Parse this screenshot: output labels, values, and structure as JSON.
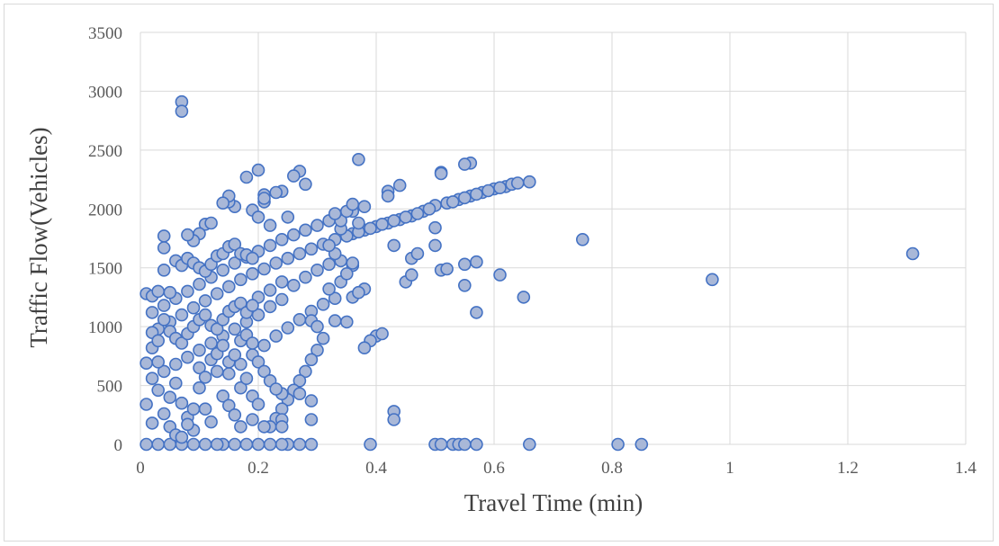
{
  "chart_data": {
    "type": "scatter",
    "title": "",
    "xlabel": "Travel Time (min)",
    "ylabel": "Traffic Flow(Vehicles)",
    "xlim": [
      0,
      1.4
    ],
    "ylim": [
      0,
      3500
    ],
    "xticks": [
      0,
      0.2,
      0.4,
      0.6,
      0.8,
      1,
      1.2,
      1.4
    ],
    "yticks": [
      0,
      500,
      1000,
      1500,
      2000,
      2500,
      3000,
      3500
    ],
    "xtick_labels": [
      "0",
      "0.2",
      "0.4",
      "0.6",
      "0.8",
      "1",
      "1.2",
      "1.4"
    ],
    "ytick_labels": [
      "0",
      "500",
      "1000",
      "1500",
      "2000",
      "2500",
      "3000",
      "3500"
    ],
    "grid": true,
    "legend": "none",
    "marker_fill": "#a9b8d8",
    "marker_edge": "#4472c4",
    "gridline_color": "#d9d9d9",
    "series": [
      {
        "points": [
          [
            0.07,
            2910
          ],
          [
            0.07,
            2830
          ],
          [
            0.37,
            2420
          ],
          [
            0.56,
            2390
          ],
          [
            0.55,
            2380
          ],
          [
            0.27,
            2320
          ],
          [
            0.26,
            2280
          ],
          [
            0.2,
            2330
          ],
          [
            0.18,
            2270
          ],
          [
            0.51,
            2310
          ],
          [
            0.51,
            2300
          ],
          [
            0.28,
            2210
          ],
          [
            0.44,
            2200
          ],
          [
            0.24,
            2150
          ],
          [
            0.21,
            2120
          ],
          [
            0.42,
            2150
          ],
          [
            0.42,
            2110
          ],
          [
            0.5,
            2030
          ],
          [
            0.52,
            2050
          ],
          [
            0.54,
            2080
          ],
          [
            0.56,
            2110
          ],
          [
            0.58,
            2140
          ],
          [
            0.6,
            2170
          ],
          [
            0.62,
            2190
          ],
          [
            0.63,
            2210
          ],
          [
            0.64,
            2220
          ],
          [
            0.66,
            2230
          ],
          [
            0.53,
            2060
          ],
          [
            0.55,
            2095
          ],
          [
            0.57,
            2125
          ],
          [
            0.59,
            2155
          ],
          [
            0.61,
            2180
          ],
          [
            0.36,
            1790
          ],
          [
            0.38,
            1820
          ],
          [
            0.4,
            1850
          ],
          [
            0.42,
            1880
          ],
          [
            0.44,
            1910
          ],
          [
            0.46,
            1940
          ],
          [
            0.48,
            1980
          ],
          [
            0.49,
            2000
          ],
          [
            0.47,
            1960
          ],
          [
            0.45,
            1930
          ],
          [
            0.43,
            1900
          ],
          [
            0.41,
            1870
          ],
          [
            0.39,
            1835
          ],
          [
            0.37,
            1805
          ],
          [
            0.35,
            1770
          ],
          [
            0.33,
            1740
          ],
          [
            0.31,
            1700
          ],
          [
            0.29,
            1660
          ],
          [
            0.27,
            1620
          ],
          [
            0.25,
            1580
          ],
          [
            0.23,
            1540
          ],
          [
            0.21,
            1490
          ],
          [
            0.19,
            1450
          ],
          [
            0.17,
            1400
          ],
          [
            0.15,
            1340
          ],
          [
            0.13,
            1280
          ],
          [
            0.11,
            1220
          ],
          [
            0.09,
            1160
          ],
          [
            0.07,
            1100
          ],
          [
            0.05,
            1040
          ],
          [
            0.03,
            980
          ],
          [
            0.3,
            1860
          ],
          [
            0.32,
            1900
          ],
          [
            0.34,
            1940
          ],
          [
            0.36,
            1980
          ],
          [
            0.38,
            2020
          ],
          [
            0.28,
            1820
          ],
          [
            0.26,
            1780
          ],
          [
            0.24,
            1740
          ],
          [
            0.22,
            1690
          ],
          [
            0.2,
            1640
          ],
          [
            0.18,
            1590
          ],
          [
            0.16,
            1540
          ],
          [
            0.14,
            1480
          ],
          [
            0.12,
            1420
          ],
          [
            0.1,
            1360
          ],
          [
            0.08,
            1300
          ],
          [
            0.06,
            1240
          ],
          [
            0.04,
            1180
          ],
          [
            0.02,
            1120
          ],
          [
            0.26,
            1350
          ],
          [
            0.28,
            1420
          ],
          [
            0.3,
            1480
          ],
          [
            0.32,
            1530
          ],
          [
            0.34,
            1560
          ],
          [
            0.36,
            1520
          ],
          [
            0.38,
            1320
          ],
          [
            0.33,
            1240
          ],
          [
            0.31,
            1190
          ],
          [
            0.29,
            1130
          ],
          [
            0.27,
            1060
          ],
          [
            0.25,
            990
          ],
          [
            0.23,
            920
          ],
          [
            0.21,
            840
          ],
          [
            0.19,
            760
          ],
          [
            0.17,
            680
          ],
          [
            0.15,
            600
          ],
          [
            0.29,
            1050
          ],
          [
            0.3,
            1000
          ],
          [
            0.31,
            900
          ],
          [
            0.3,
            800
          ],
          [
            0.29,
            720
          ],
          [
            0.28,
            620
          ],
          [
            0.27,
            540
          ],
          [
            0.26,
            460
          ],
          [
            0.25,
            380
          ],
          [
            0.24,
            300
          ],
          [
            0.23,
            220
          ],
          [
            0.22,
            150
          ],
          [
            0.2,
            1250
          ],
          [
            0.22,
            1310
          ],
          [
            0.24,
            1380
          ],
          [
            0.2,
            1100
          ],
          [
            0.22,
            1170
          ],
          [
            0.24,
            1230
          ],
          [
            0.18,
            1040
          ],
          [
            0.16,
            980
          ],
          [
            0.14,
            920
          ],
          [
            0.12,
            860
          ],
          [
            0.1,
            800
          ],
          [
            0.08,
            740
          ],
          [
            0.06,
            680
          ],
          [
            0.04,
            620
          ],
          [
            0.02,
            560
          ],
          [
            0.45,
            1380
          ],
          [
            0.46,
            1440
          ],
          [
            0.46,
            1580
          ],
          [
            0.47,
            1620
          ],
          [
            0.43,
            1690
          ],
          [
            0.5,
            1690
          ],
          [
            0.51,
            1480
          ],
          [
            0.52,
            1490
          ],
          [
            0.55,
            1350
          ],
          [
            0.55,
            1530
          ],
          [
            0.57,
            1550
          ],
          [
            0.61,
            1440
          ],
          [
            0.57,
            1120
          ],
          [
            0.65,
            1250
          ],
          [
            0.75,
            1740
          ],
          [
            0.97,
            1400
          ],
          [
            1.31,
            1620
          ],
          [
            0.5,
            1840
          ],
          [
            0.4,
            920
          ],
          [
            0.41,
            940
          ],
          [
            0.39,
            880
          ],
          [
            0.38,
            820
          ],
          [
            0.43,
            280
          ],
          [
            0.43,
            210
          ],
          [
            0.39,
            0
          ],
          [
            0.5,
            0
          ],
          [
            0.51,
            0
          ],
          [
            0.53,
            0
          ],
          [
            0.54,
            0
          ],
          [
            0.55,
            0
          ],
          [
            0.57,
            0
          ],
          [
            0.66,
            0
          ],
          [
            0.81,
            0
          ],
          [
            0.85,
            0
          ],
          [
            0.29,
            0
          ],
          [
            0.27,
            0
          ],
          [
            0.25,
            0
          ],
          [
            0.24,
            0
          ],
          [
            0.22,
            0
          ],
          [
            0.2,
            0
          ],
          [
            0.18,
            0
          ],
          [
            0.16,
            0
          ],
          [
            0.14,
            0
          ],
          [
            0.13,
            0
          ],
          [
            0.11,
            0
          ],
          [
            0.09,
            0
          ],
          [
            0.07,
            0
          ],
          [
            0.05,
            0
          ],
          [
            0.03,
            0
          ],
          [
            0.01,
            0
          ],
          [
            0.29,
            370
          ],
          [
            0.29,
            210
          ],
          [
            0.27,
            430
          ],
          [
            0.24,
            430
          ],
          [
            0.24,
            210
          ],
          [
            0.24,
            150
          ],
          [
            0.21,
            150
          ],
          [
            0.19,
            210
          ],
          [
            0.17,
            150
          ],
          [
            0.11,
            1870
          ],
          [
            0.12,
            1880
          ],
          [
            0.1,
            1790
          ],
          [
            0.09,
            1730
          ],
          [
            0.08,
            1780
          ],
          [
            0.04,
            1770
          ],
          [
            0.04,
            1670
          ],
          [
            0.16,
            2020
          ],
          [
            0.15,
            2060
          ],
          [
            0.15,
            2110
          ],
          [
            0.14,
            2050
          ],
          [
            0.19,
            1990
          ],
          [
            0.2,
            1930
          ],
          [
            0.22,
            1860
          ],
          [
            0.21,
            2060
          ],
          [
            0.23,
            2140
          ],
          [
            0.21,
            2090
          ],
          [
            0.25,
            1930
          ],
          [
            0.02,
            820
          ],
          [
            0.03,
            700
          ],
          [
            0.01,
            690
          ],
          [
            0.03,
            460
          ],
          [
            0.01,
            340
          ],
          [
            0.02,
            180
          ],
          [
            0.04,
            260
          ],
          [
            0.05,
            400
          ],
          [
            0.06,
            520
          ],
          [
            0.07,
            350
          ],
          [
            0.08,
            230
          ],
          [
            0.09,
            120
          ],
          [
            0.1,
            480
          ],
          [
            0.11,
            300
          ],
          [
            0.12,
            190
          ],
          [
            0.13,
            620
          ],
          [
            0.14,
            410
          ],
          [
            0.15,
            330
          ],
          [
            0.16,
            250
          ],
          [
            0.17,
            480
          ],
          [
            0.18,
            560
          ],
          [
            0.19,
            410
          ],
          [
            0.2,
            340
          ],
          [
            0.01,
            1280
          ],
          [
            0.02,
            1260
          ],
          [
            0.03,
            1300
          ],
          [
            0.04,
            1480
          ],
          [
            0.05,
            1290
          ],
          [
            0.06,
            1560
          ],
          [
            0.07,
            1520
          ],
          [
            0.08,
            1580
          ],
          [
            0.09,
            1540
          ],
          [
            0.1,
            1500
          ],
          [
            0.11,
            1470
          ],
          [
            0.12,
            1530
          ],
          [
            0.13,
            1600
          ],
          [
            0.14,
            1620
          ],
          [
            0.15,
            1680
          ],
          [
            0.16,
            1700
          ],
          [
            0.17,
            1620
          ],
          [
            0.18,
            1610
          ],
          [
            0.19,
            1580
          ],
          [
            0.02,
            950
          ],
          [
            0.03,
            880
          ],
          [
            0.04,
            1060
          ],
          [
            0.05,
            960
          ],
          [
            0.06,
            900
          ],
          [
            0.07,
            860
          ],
          [
            0.08,
            940
          ],
          [
            0.09,
            1000
          ],
          [
            0.1,
            1060
          ],
          [
            0.11,
            1100
          ],
          [
            0.12,
            1010
          ],
          [
            0.13,
            980
          ],
          [
            0.14,
            1060
          ],
          [
            0.15,
            1130
          ],
          [
            0.16,
            1170
          ],
          [
            0.17,
            1200
          ],
          [
            0.18,
            1120
          ],
          [
            0.19,
            1180
          ],
          [
            0.05,
            150
          ],
          [
            0.06,
            80
          ],
          [
            0.07,
            60
          ],
          [
            0.08,
            170
          ],
          [
            0.09,
            300
          ],
          [
            0.1,
            650
          ],
          [
            0.11,
            570
          ],
          [
            0.12,
            720
          ],
          [
            0.13,
            770
          ],
          [
            0.14,
            840
          ],
          [
            0.15,
            700
          ],
          [
            0.16,
            760
          ],
          [
            0.17,
            880
          ],
          [
            0.18,
            930
          ],
          [
            0.19,
            860
          ],
          [
            0.2,
            700
          ],
          [
            0.21,
            620
          ],
          [
            0.22,
            540
          ],
          [
            0.23,
            470
          ],
          [
            0.33,
            1050
          ],
          [
            0.35,
            1040
          ],
          [
            0.36,
            1250
          ],
          [
            0.37,
            1290
          ],
          [
            0.34,
            1380
          ],
          [
            0.32,
            1320
          ],
          [
            0.35,
            1450
          ],
          [
            0.36,
            1540
          ],
          [
            0.33,
            1620
          ],
          [
            0.32,
            1690
          ],
          [
            0.34,
            1830
          ],
          [
            0.37,
            1880
          ],
          [
            0.34,
            1900
          ],
          [
            0.33,
            1960
          ],
          [
            0.35,
            1980
          ],
          [
            0.36,
            2040
          ]
        ]
      }
    ]
  }
}
